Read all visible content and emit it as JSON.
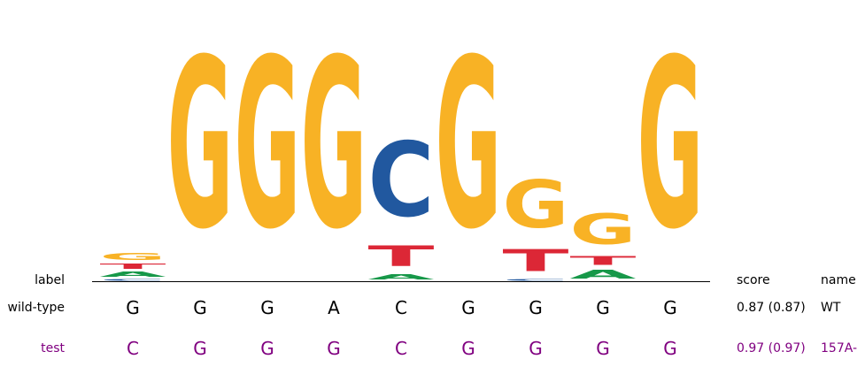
{
  "header": {
    "label": "label",
    "score": "score",
    "name": "name"
  },
  "colors": {
    "A": "#179849",
    "C": "#21589f",
    "G": "#f8b225",
    "T": "#dc2736",
    "test_text": "#800080",
    "wt_text": "#000000"
  },
  "logo": {
    "positions": [
      {
        "A": 0.03,
        "C": 0.01,
        "G": 0.04,
        "T": 0.03
      },
      {
        "G": 1.0
      },
      {
        "G": 1.0
      },
      {
        "G": 1.0
      },
      {
        "A": 0.03,
        "T": 0.12,
        "C": 0.44
      },
      {
        "G": 1.0
      },
      {
        "C": 0.01,
        "T": 0.13,
        "G": 0.28
      },
      {
        "A": 0.05,
        "T": 0.05,
        "G": 0.18
      },
      {
        "G": 1.0
      }
    ]
  },
  "rows": [
    {
      "label": "wild-type",
      "bases": [
        "G",
        "G",
        "G",
        "A",
        "C",
        "G",
        "G",
        "G",
        "G"
      ],
      "score": "0.87 (0.87)",
      "name": "WT"
    },
    {
      "label": "test",
      "bases": [
        "C",
        "G",
        "G",
        "G",
        "C",
        "G",
        "G",
        "G",
        "G"
      ],
      "score": "0.97 (0.97)",
      "name": "157A-"
    }
  ]
}
